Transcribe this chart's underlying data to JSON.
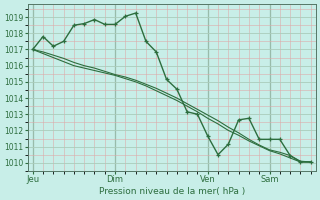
{
  "background_color": "#c8eee8",
  "plot_bg_color": "#c8eee8",
  "grid_major_color": "#aaccbb",
  "grid_minor_color": "#ddaaaa",
  "line_color": "#2d6e3e",
  "ylabel": "Pression niveau de la mer( hPa )",
  "ylim": [
    1009.5,
    1019.8
  ],
  "yticks": [
    1010,
    1011,
    1012,
    1013,
    1014,
    1015,
    1016,
    1017,
    1018,
    1019
  ],
  "xtick_labels": [
    "Jeu",
    "Dim",
    "Ven",
    "Sam"
  ],
  "xtick_positions": [
    0,
    8,
    17,
    23
  ],
  "vline_positions": [
    0,
    8,
    17,
    23
  ],
  "total_points": 28,
  "series1": [
    1017.0,
    1017.8,
    1017.2,
    1017.5,
    1018.5,
    1018.6,
    1018.85,
    1018.55,
    1018.55,
    1019.05,
    1019.25,
    1017.5,
    1016.85,
    1015.15,
    1014.55,
    1013.15,
    1013.0,
    1011.65,
    1010.5,
    1011.15,
    1012.65,
    1012.75,
    1011.45,
    1011.45,
    1011.45,
    1010.45,
    1010.05,
    1010.05
  ],
  "series2": [
    1017.0,
    1016.75,
    1016.5,
    1016.25,
    1016.0,
    1015.85,
    1015.7,
    1015.55,
    1015.4,
    1015.2,
    1015.0,
    1014.75,
    1014.45,
    1014.15,
    1013.85,
    1013.5,
    1013.15,
    1012.75,
    1012.4,
    1012.0,
    1011.7,
    1011.35,
    1011.05,
    1010.75,
    1010.55,
    1010.3,
    1010.05,
    1010.05
  ],
  "series3": [
    1017.0,
    1016.85,
    1016.65,
    1016.45,
    1016.2,
    1016.0,
    1015.85,
    1015.65,
    1015.45,
    1015.3,
    1015.1,
    1014.85,
    1014.6,
    1014.3,
    1014.0,
    1013.65,
    1013.3,
    1012.95,
    1012.6,
    1012.2,
    1011.85,
    1011.45,
    1011.1,
    1010.8,
    1010.65,
    1010.45,
    1010.1,
    1010.05
  ]
}
